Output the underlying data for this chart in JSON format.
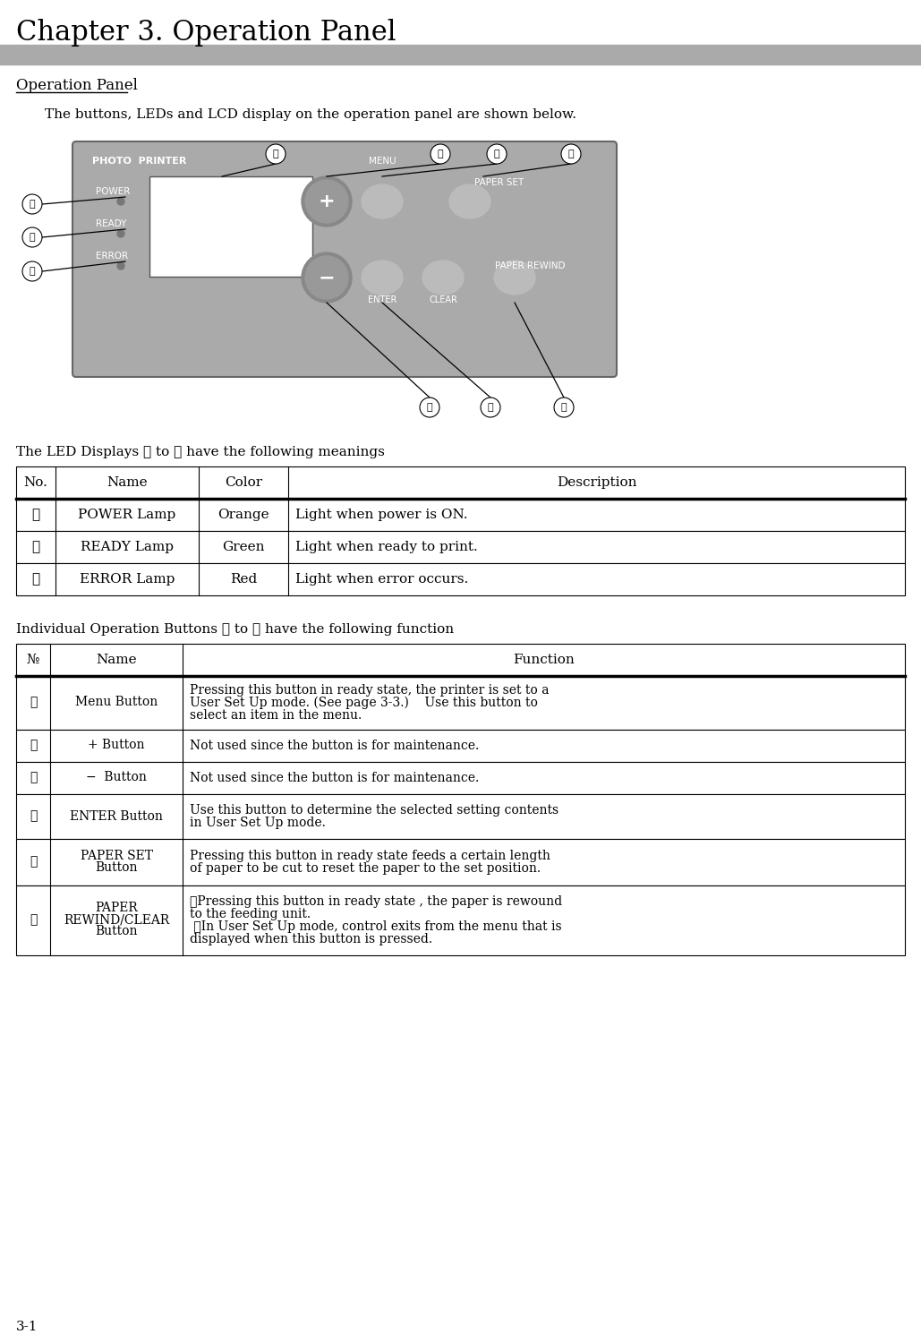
{
  "page_bg": "#ffffff",
  "title": "Chapter 3. Operation Panel",
  "title_font_size": 22,
  "title_bar_color": "#aaaaaa",
  "section1_title": "Operation Panel",
  "section1_intro": "The buttons, LEDs and LCD display on the operation panel are shown below.",
  "panel_bg": "#aaaaaa",
  "led_section_label": "The LED Displays ① to ③ have the following meanings",
  "led_table_header": [
    "No.",
    "Name",
    "Color",
    "Description"
  ],
  "led_table_rows": [
    [
      "①",
      "POWER Lamp",
      "Orange",
      "Light when power is ON."
    ],
    [
      "②",
      "READY Lamp",
      "Green",
      "Light when ready to print."
    ],
    [
      "③",
      "ERROR Lamp",
      "Red",
      "Light when error occurs."
    ]
  ],
  "btn_section_label": "Individual Operation Buttons ④ to ⑨ have the following function",
  "btn_table_header": [
    "№",
    "Name",
    "Function"
  ],
  "btn_table_rows": [
    [
      "④",
      "Menu Button",
      "Pressing this button in ready state, the printer is set to a\nUser Set Up mode. (See page 3-3.)    Use this button to\nselect an item in the menu."
    ],
    [
      "⑤",
      "+ Button",
      "Not used since the button is for maintenance."
    ],
    [
      "⑥",
      "−  Button",
      "Not used since the button is for maintenance."
    ],
    [
      "⑦",
      "ENTER Button",
      "Use this button to determine the selected setting contents\nin User Set Up mode."
    ],
    [
      "⑧",
      "PAPER SET\nButton",
      "Pressing this button in ready state feeds a certain length\nof paper to be cut to reset the paper to the set position."
    ],
    [
      "⑨",
      "PAPER\nREWIND/CLEAR\nButton",
      "・Pressing this button in ready state , the paper is rewound\nto the feeding unit.\n ・In User Set Up mode, control exits from the menu that is\ndisplayed when this button is pressed."
    ]
  ],
  "page_number": "3-1"
}
